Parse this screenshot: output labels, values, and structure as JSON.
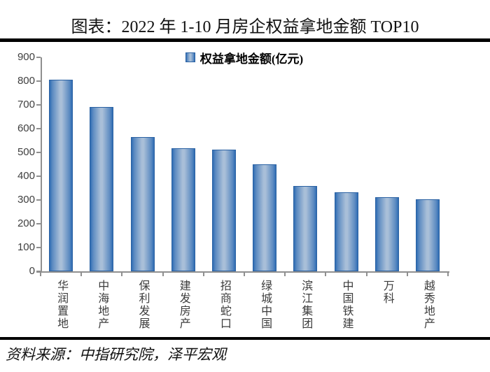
{
  "page": {
    "title": "图表：2022 年 1-10 月房企权益拿地金额 TOP10",
    "source_note": "资料来源：中指研究院，泽平宏观"
  },
  "chart_data": {
    "type": "bar",
    "title": "图表：2022 年 1-10 月房企权益拿地金额 TOP10",
    "legend_label": "权益拿地金额(亿元)",
    "legend_position": "top-center",
    "categories": [
      "华润置地",
      "中海地产",
      "保利发展",
      "建发房产",
      "招商蛇口",
      "绿城中国",
      "滨江集团",
      "中国铁建",
      "万科",
      "越秀地产"
    ],
    "series": [
      {
        "name": "权益拿地金额(亿元)",
        "values": [
          805,
          690,
          565,
          518,
          511,
          449,
          358,
          331,
          312,
          302
        ]
      }
    ],
    "ylabel": "",
    "xlabel": "",
    "ylim": [
      0,
      900
    ],
    "yticks": [
      0,
      100,
      200,
      300,
      400,
      500,
      600,
      700,
      800,
      900
    ],
    "grid": false,
    "colors": {
      "bar_edge": "#2f6cb3",
      "bar_mid": "#5b8ac1",
      "bar_center": "#a9bfd8",
      "bar_border": "#2b62a3",
      "axis": "#8f8f8f",
      "tick_label": "#3f3f3f",
      "text": "#000000"
    }
  }
}
